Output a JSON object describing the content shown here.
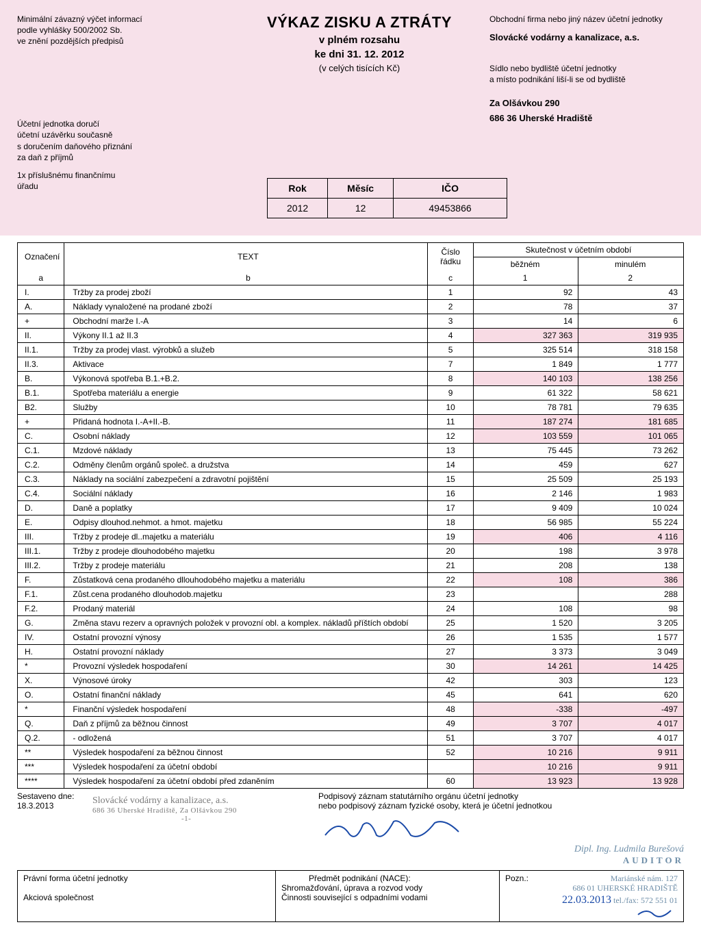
{
  "header": {
    "left_block1": "Minimální závazný výčet informací\npodle vyhlášky 500/2002 Sb.\nve znění pozdějších předpisů",
    "left_block2": "Účetní jednotka doručí\núčetní uzávěrku současně\ns doručením daňového přiznání\nza daň z příjmů",
    "left_block3": "1x příslušnému finančnímu\n   úřadu",
    "title": "VÝKAZ ZISKU A ZTRÁTY",
    "subtitle": "v plném rozsahu",
    "dateline": "ke dni 31. 12. 2012",
    "units": "(v celých tisících Kč)",
    "right_label1": "Obchodní firma nebo jiný název účetní jednotky",
    "company": "Slovácké vodárny a kanalizace, a.s.",
    "right_label2": "Sídlo nebo bydliště účetní jednotky\na místo podnikání liší-li se od bydliště",
    "addr1": "Za Olšávkou 290",
    "addr2": "686 36 Uherské Hradiště",
    "id_th": [
      "Rok",
      "Měsíc",
      "IČO"
    ],
    "id_td": [
      "2012",
      "12",
      "49453866"
    ]
  },
  "table": {
    "head": {
      "oznaceni": "Označení",
      "text": "TEXT",
      "cislo": "Číslo\nřádku",
      "skutecnost": "Skutečnost v účetním období",
      "bezne": "běžném",
      "minule": "minulém",
      "a": "a",
      "b": "b",
      "c": "c",
      "n1": "1",
      "n2": "2"
    },
    "rows": [
      {
        "a": "I.",
        "b": "Tržby za prodej zboží",
        "c": "1",
        "v1": "92",
        "v2": "43"
      },
      {
        "a": "A.",
        "b": "Náklady vynaložené na prodané zboží",
        "c": "2",
        "v1": "78",
        "v2": "37"
      },
      {
        "a": "+",
        "b": "Obchodní marže            I.-A",
        "c": "3",
        "v1": "14",
        "v2": "6"
      },
      {
        "a": "II.",
        "b": "Výkony            II.1 až II.3",
        "c": "4",
        "v1": "327 363",
        "v2": "319 935",
        "hl": true
      },
      {
        "a": "II.1.",
        "b": "Tržby za prodej vlast. výrobků a služeb",
        "c": "5",
        "v1": "325 514",
        "v2": "318 158"
      },
      {
        "a": "II.3.",
        "b": "Aktivace",
        "c": "7",
        "v1": "1 849",
        "v2": "1 777"
      },
      {
        "a": "B.",
        "b": "Výkonová spotřeba         B.1.+B.2.",
        "c": "8",
        "v1": "140 103",
        "v2": "138 256",
        "hl": true
      },
      {
        "a": "B.1.",
        "b": "Spotřeba materiálu a energie",
        "c": "9",
        "v1": "61 322",
        "v2": "58 621"
      },
      {
        "a": "B2.",
        "b": "Služby",
        "c": "10",
        "v1": "78 781",
        "v2": "79 635"
      },
      {
        "a": "+",
        "b": "Přidaná hodnota        I.-A+II.-B.",
        "c": "11",
        "v1": "187 274",
        "v2": "181 685",
        "hl": true
      },
      {
        "a": "C.",
        "b": "Osobní náklady",
        "c": "12",
        "v1": "103 559",
        "v2": "101 065",
        "hl": true
      },
      {
        "a": "C.1.",
        "b": "Mzdové náklady",
        "c": "13",
        "v1": "75 445",
        "v2": "73 262"
      },
      {
        "a": "C.2.",
        "b": "Odměny členům orgánů společ. a družstva",
        "c": "14",
        "v1": "459",
        "v2": "627"
      },
      {
        "a": "C.3.",
        "b": "Náklady na sociální zabezpečení a zdravotní pojištění",
        "c": "15",
        "v1": "25 509",
        "v2": "25 193"
      },
      {
        "a": "C.4.",
        "b": "Sociální náklady",
        "c": "16",
        "v1": "2 146",
        "v2": "1 983"
      },
      {
        "a": "D.",
        "b": "Daně a poplatky",
        "c": "17",
        "v1": "9 409",
        "v2": "10 024"
      },
      {
        "a": "E.",
        "b": "Odpisy dlouhod.nehmot. a hmot. majetku",
        "c": "18",
        "v1": "56 985",
        "v2": "55 224"
      },
      {
        "a": "III.",
        "b": "Tržby z prodeje dl..majetku a materiálu",
        "c": "19",
        "v1": "406",
        "v2": "4 116",
        "hl": true
      },
      {
        "a": "III.1.",
        "b": "Tržby z prodeje dlouhodobého majetku",
        "c": "20",
        "v1": "198",
        "v2": "3 978"
      },
      {
        "a": "III.2.",
        "b": "Tržby z prodeje materiálu",
        "c": "21",
        "v1": "208",
        "v2": "138"
      },
      {
        "a": "F.",
        "b": "Zůstatková cena prodaného dllouhodobého majetku a materiálu",
        "c": "22",
        "v1": "108",
        "v2": "386",
        "hl": true
      },
      {
        "a": "F.1.",
        "b": "Zůst.cena prodaného dlouhodob.majetku",
        "c": "23",
        "v1": "",
        "v2": "288"
      },
      {
        "a": "F.2.",
        "b": "Prodaný materiál",
        "c": "24",
        "v1": "108",
        "v2": "98"
      },
      {
        "a": "G.",
        "b": "Změna stavu  rezerv a opravných položek v provozní obl. a komplex. nákladů příštích období",
        "c": "25",
        "v1": "1 520",
        "v2": "3 205"
      },
      {
        "a": "IV.",
        "b": "Ostatní provozní výnosy",
        "c": "26",
        "v1": "1 535",
        "v2": "1 577"
      },
      {
        "a": "H.",
        "b": "Ostatní provozní náklady",
        "c": "27",
        "v1": "3 373",
        "v2": "3 049"
      },
      {
        "a": "*",
        "b": "Provozní výsledek hospodaření",
        "c": "30",
        "v1": "14 261",
        "v2": "14 425",
        "hl": true
      },
      {
        "a": "X.",
        "b": "Výnosové úroky",
        "c": "42",
        "v1": "303",
        "v2": "123"
      },
      {
        "a": "O.",
        "b": "Ostatní finanční náklady",
        "c": "45",
        "v1": "641",
        "v2": "620"
      },
      {
        "a": "*",
        "b": "Finanční výsledek hospodaření",
        "c": "48",
        "v1": "-338",
        "v2": "-497",
        "hl": true
      },
      {
        "a": "Q.",
        "b": "Daň z příjmů za běžnou činnost",
        "c": "49",
        "v1": "3 707",
        "v2": "4 017",
        "hl": true
      },
      {
        "a": "Q.2.",
        "b": "- odložená",
        "c": "51",
        "v1": "3 707",
        "v2": "4 017"
      },
      {
        "a": "**",
        "b": "Výsledek hospodaření za běžnou činnost",
        "c": "52",
        "v1": "10 216",
        "v2": "9 911",
        "hl": true
      },
      {
        "a": "***",
        "b": "Výsledek hospodaření za účetní období",
        "c": "",
        "v1": "10 216",
        "v2": "9 911",
        "hl": true
      },
      {
        "a": "****",
        "b": "Výsledek hospodaření za účetní období před zdaněním",
        "c": "60",
        "v1": "13 923",
        "v2": "13 928",
        "hl": true
      }
    ]
  },
  "footer": {
    "sestaveno_lbl": "Sestaveno dne:",
    "sestaveno_date": "18.3.2013",
    "stamp_line1": "Slovácké vodárny a kanalizace, a.s.",
    "stamp_line2": "686 36  Uherské Hradiště, Za Olšávkou 290",
    "stamp_line3": "-1-",
    "podpis_lbl1": "Podpisový záznam statutárního orgánu účetní jednotky",
    "podpis_lbl2": "nebo podpisový záznam fyzické osoby, která je účetní jednotkou",
    "auditor_name": "Dipl. Ing. Ludmila Burešová",
    "auditor_title": "AUDITOR",
    "pravni_lbl": "Právní forma účetní jednotky",
    "pravni_val": "Akciová společnost",
    "predmet_lbl": "Předmět podnikání (NACE):",
    "predmet_val1": "Shromažďování, úprava a rozvod vody",
    "predmet_val2": "Činnosti související s odpadními vodami",
    "pozn_lbl": "Pozn.:",
    "aud_addr1": "Mariánské  nám. 127",
    "aud_addr2": "686 01  UHERSKÉ  HRADIŠTĚ",
    "aud_date": "22.03.2013",
    "aud_tel": "tel./fax: 572 551 01"
  }
}
